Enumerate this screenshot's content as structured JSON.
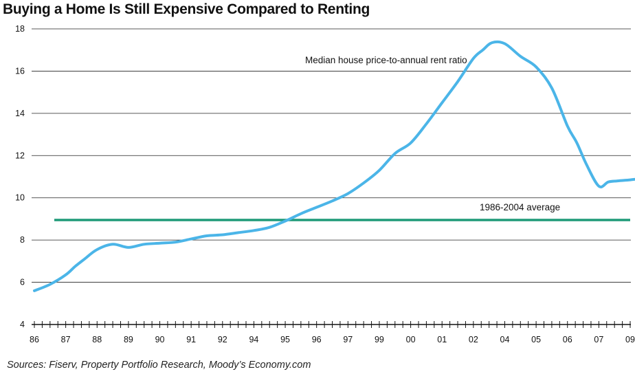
{
  "chart_data": {
    "type": "line",
    "title": "Buying a Home Is Still Expensive Compared to Renting",
    "source": "Sources:  Fiserv, Property Portfolio Research, Moody’s Economy.com",
    "xlabel": "",
    "ylabel": "",
    "ylim": [
      4,
      18
    ],
    "y_ticks": [
      "18",
      "16",
      "14",
      "12",
      "10",
      "8",
      "6",
      "4"
    ],
    "x_tick_labels": [
      "86",
      "87",
      "88",
      "89",
      "90",
      "91",
      "92",
      "94",
      "95",
      "96",
      "97",
      "99",
      "00",
      "01",
      "02",
      "04",
      "05",
      "06",
      "07",
      "09"
    ],
    "grid": "horizontal",
    "annotations": {
      "series_label": "Median house price-to-annual rent ratio",
      "average_label": "1986-2004 average"
    },
    "reference_line": {
      "name": "1986-2004 average",
      "value": 8.95,
      "color": "#1e9a78"
    },
    "series": [
      {
        "name": "Median house price-to-annual rent ratio",
        "color": "#4bb5e8",
        "x": [
          0,
          0.5,
          1,
          1.3,
          1.6,
          2,
          2.5,
          3,
          3.5,
          4,
          4.5,
          5,
          5.5,
          6,
          6.5,
          7,
          7.5,
          8,
          8.5,
          9,
          9.5,
          10,
          10.5,
          11,
          11.5,
          12,
          12.5,
          13,
          13.5,
          14,
          14.3,
          14.6,
          15,
          15.5,
          16,
          16.5,
          17,
          17.3,
          17.6,
          18,
          18.3,
          18.6,
          19,
          19.3,
          19.6,
          19.8
        ],
        "values": [
          5.6,
          5.9,
          6.35,
          6.75,
          7.1,
          7.55,
          7.8,
          7.65,
          7.8,
          7.85,
          7.9,
          8.05,
          8.2,
          8.25,
          8.35,
          8.45,
          8.6,
          8.9,
          9.25,
          9.55,
          9.85,
          10.2,
          10.7,
          11.3,
          12.1,
          12.6,
          13.5,
          14.5,
          15.5,
          16.6,
          17.0,
          17.35,
          17.3,
          16.7,
          16.2,
          15.2,
          13.4,
          12.6,
          11.6,
          10.55,
          10.75,
          10.8,
          10.85,
          10.9,
          10.9,
          10.85
        ]
      }
    ]
  }
}
